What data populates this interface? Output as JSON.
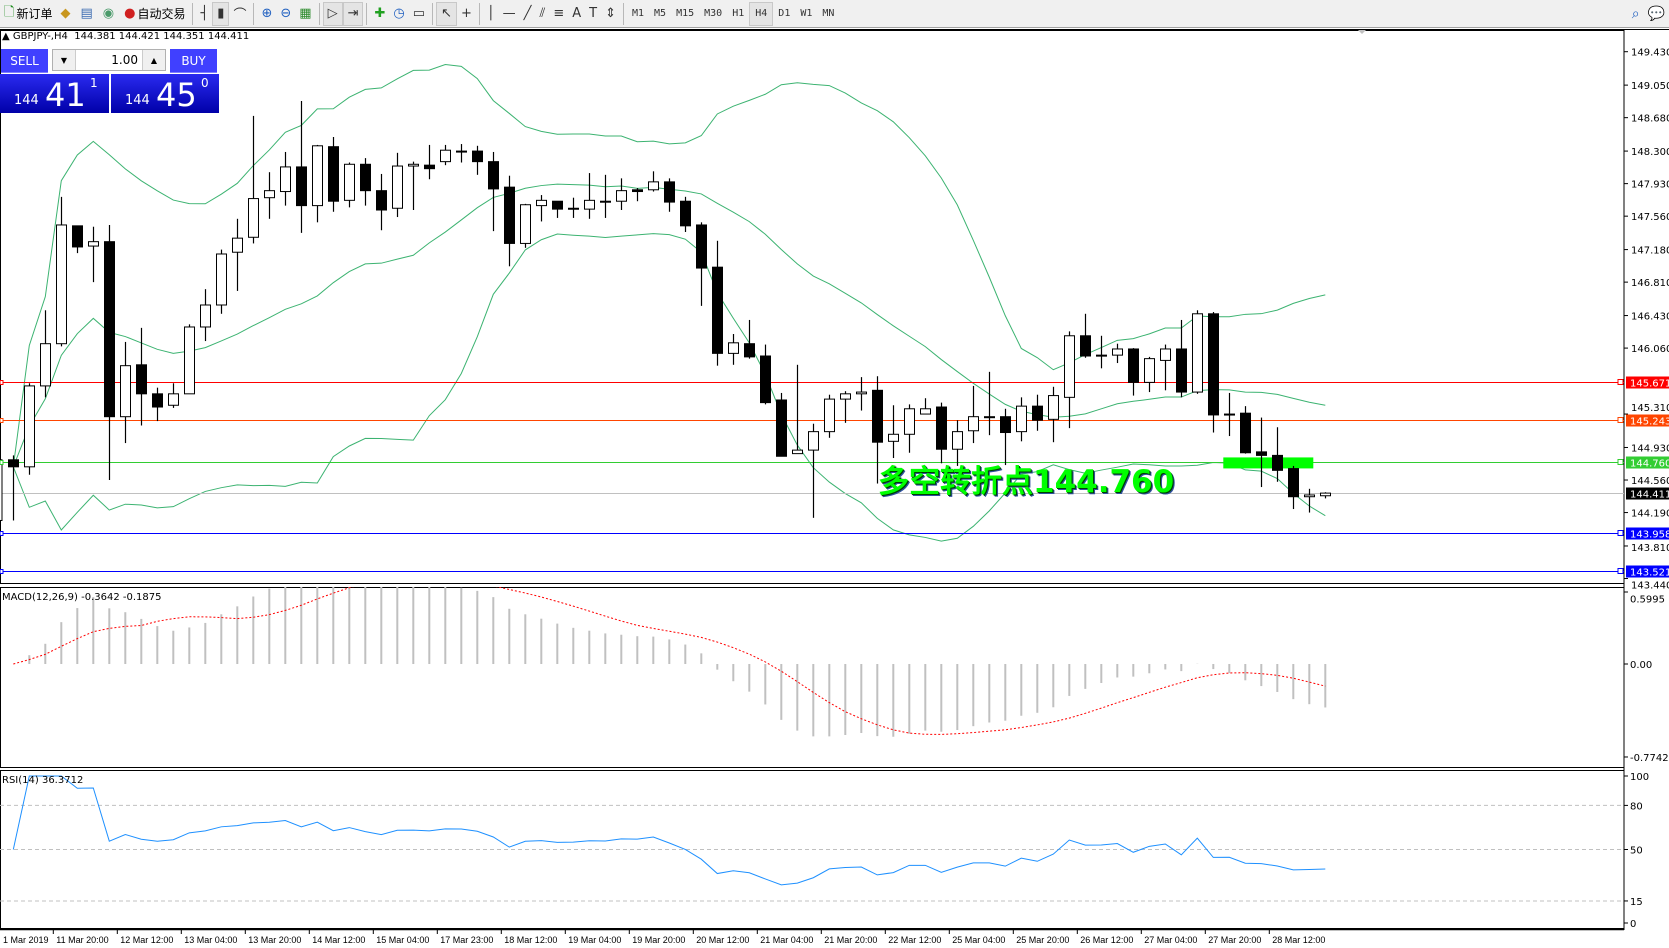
{
  "toolbar": {
    "items": [
      {
        "name": "new-order-button",
        "label": "新订单",
        "icon": "new-order-icon"
      },
      {
        "name": "market-watch-button",
        "label": "",
        "icon": "gold-bar-icon"
      },
      {
        "name": "navigator-button",
        "label": "",
        "icon": "navigator-icon"
      },
      {
        "name": "signals-button",
        "label": "",
        "icon": "signal-icon"
      },
      {
        "name": "auto-trading-button",
        "label": "自动交易",
        "icon": "auto-trading-icon"
      }
    ],
    "chart_tools": [
      "bar-chart-icon",
      "candlestick-icon",
      "line-chart-icon",
      "zoom-in-icon",
      "zoom-out-icon",
      "tile-windows-icon",
      "autoscroll-icon",
      "chart-shift-icon",
      "indicators-icon",
      "periods-icon",
      "templates-icon",
      "cursor-icon",
      "crosshair-icon",
      "vertical-line-icon",
      "horizontal-line-icon",
      "trendline-icon",
      "equidistant-channel-icon",
      "fibonacci-icon",
      "text-icon",
      "text-label-icon",
      "arrows-icon"
    ],
    "text_tool_label": "A",
    "timeframes": [
      "M1",
      "M5",
      "M15",
      "M30",
      "H1",
      "H4",
      "D1",
      "W1",
      "MN"
    ],
    "active_timeframe": "H4",
    "right_icons": [
      "search-icon",
      "chat-icon"
    ]
  },
  "header": {
    "symbol": "GBPJPY-,H4",
    "ohlc": "144.381 144.421 144.351 144.411"
  },
  "trade_panel": {
    "sell_label": "SELL",
    "buy_label": "BUY",
    "lot": "1.00",
    "sell_price": {
      "big_prefix": "144",
      "main": "41",
      "exp": "1"
    },
    "buy_price": {
      "big_prefix": "144",
      "main": "45",
      "exp": "0"
    }
  },
  "annotation": {
    "text": "多空转折点144.760",
    "color": "#00ff00"
  },
  "chart_data": {
    "type": "candlestick",
    "symbol": "GBPJPY-",
    "timeframe": "H4",
    "price_ticks": [
      "149.430",
      "149.050",
      "148.680",
      "148.300",
      "147.930",
      "147.560",
      "147.180",
      "146.810",
      "146.430",
      "146.060",
      "145.310",
      "144.930",
      "144.560",
      "144.190",
      "143.810",
      "143.440"
    ],
    "ylim": [
      143.44,
      149.5
    ],
    "time_labels": [
      {
        "label": "1 Mar 2019",
        "candle": -1
      },
      {
        "label": "11 Mar 20:00",
        "candle": 3
      },
      {
        "label": "12 Mar 12:00",
        "candle": 7
      },
      {
        "label": "13 Mar 04:00",
        "candle": 11
      },
      {
        "label": "13 Mar 20:00",
        "candle": 15
      },
      {
        "label": "14 Mar 12:00",
        "candle": 19
      },
      {
        "label": "15 Mar 04:00",
        "candle": 23
      },
      {
        "label": "17 Mar 23:00",
        "candle": 27
      },
      {
        "label": "18 Mar 12:00",
        "candle": 31
      },
      {
        "label": "19 Mar 04:00",
        "candle": 35
      },
      {
        "label": "19 Mar 20:00",
        "candle": 39
      },
      {
        "label": "20 Mar 12:00",
        "candle": 43
      },
      {
        "label": "21 Mar 04:00",
        "candle": 47
      },
      {
        "label": "21 Mar 20:00",
        "candle": 51
      },
      {
        "label": "22 Mar 12:00",
        "candle": 55
      },
      {
        "label": "25 Mar 04:00",
        "candle": 59
      },
      {
        "label": "25 Mar 20:00",
        "candle": 63
      },
      {
        "label": "26 Mar 12:00",
        "candle": 67
      },
      {
        "label": "27 Mar 04:00",
        "candle": 71
      },
      {
        "label": "27 Mar 20:00",
        "candle": 75
      },
      {
        "label": "28 Mar 12:00",
        "candle": 79
      }
    ],
    "ohlc": [
      [
        144.79,
        144.84,
        144.1,
        144.71
      ],
      [
        144.71,
        145.66,
        144.62,
        145.63
      ],
      [
        145.63,
        146.49,
        145.5,
        146.11
      ],
      [
        146.11,
        147.78,
        146.08,
        147.46
      ],
      [
        147.45,
        147.45,
        147.14,
        147.21
      ],
      [
        147.22,
        147.44,
        146.81,
        147.27
      ],
      [
        147.27,
        147.46,
        144.56,
        145.28
      ],
      [
        145.28,
        146.13,
        144.98,
        145.86
      ],
      [
        145.87,
        146.29,
        145.18,
        145.54
      ],
      [
        145.54,
        145.61,
        145.23,
        145.39
      ],
      [
        145.41,
        145.66,
        145.38,
        145.54
      ],
      [
        145.54,
        146.33,
        145.54,
        146.3
      ],
      [
        146.3,
        146.73,
        146.14,
        146.55
      ],
      [
        146.55,
        147.18,
        146.45,
        147.13
      ],
      [
        147.15,
        147.53,
        146.71,
        147.31
      ],
      [
        147.32,
        148.7,
        147.25,
        147.76
      ],
      [
        147.77,
        148.06,
        147.53,
        147.85
      ],
      [
        147.84,
        148.29,
        147.68,
        148.12
      ],
      [
        148.12,
        148.87,
        147.37,
        147.68
      ],
      [
        147.68,
        148.37,
        147.49,
        148.36
      ],
      [
        148.35,
        148.46,
        147.61,
        147.73
      ],
      [
        147.74,
        148.17,
        147.66,
        148.15
      ],
      [
        148.15,
        148.22,
        147.68,
        147.85
      ],
      [
        147.85,
        148.04,
        147.4,
        147.63
      ],
      [
        147.65,
        148.28,
        147.55,
        148.13
      ],
      [
        148.13,
        148.18,
        147.63,
        148.15
      ],
      [
        148.14,
        148.37,
        147.98,
        148.1
      ],
      [
        148.18,
        148.37,
        148.14,
        148.31
      ],
      [
        148.3,
        148.38,
        148.17,
        148.3
      ],
      [
        148.3,
        148.36,
        148.03,
        148.18
      ],
      [
        148.18,
        148.29,
        147.39,
        147.87
      ],
      [
        147.89,
        148.02,
        146.99,
        147.25
      ],
      [
        147.25,
        147.7,
        147.2,
        147.69
      ],
      [
        147.68,
        147.8,
        147.5,
        147.74
      ],
      [
        147.73,
        147.73,
        147.54,
        147.64
      ],
      [
        147.65,
        147.77,
        147.54,
        147.65
      ],
      [
        147.64,
        148.05,
        147.53,
        147.74
      ],
      [
        147.73,
        148.03,
        147.54,
        147.73
      ],
      [
        147.73,
        147.99,
        147.63,
        147.85
      ],
      [
        147.86,
        147.88,
        147.73,
        147.84
      ],
      [
        147.86,
        148.07,
        147.84,
        147.95
      ],
      [
        147.95,
        147.99,
        147.61,
        147.72
      ],
      [
        147.73,
        147.78,
        147.38,
        147.45
      ],
      [
        147.46,
        147.49,
        146.54,
        146.97
      ],
      [
        146.98,
        147.28,
        145.86,
        146.0
      ],
      [
        146.0,
        146.22,
        145.87,
        146.12
      ],
      [
        146.11,
        146.38,
        145.94,
        145.96
      ],
      [
        145.97,
        146.1,
        145.42,
        145.44
      ],
      [
        145.47,
        145.55,
        144.83,
        144.83
      ],
      [
        144.86,
        145.87,
        144.86,
        144.9
      ],
      [
        144.9,
        145.2,
        144.13,
        145.11
      ],
      [
        145.11,
        145.53,
        145.04,
        145.48
      ],
      [
        145.48,
        145.57,
        145.21,
        145.54
      ],
      [
        145.54,
        145.73,
        145.35,
        145.56
      ],
      [
        145.58,
        145.74,
        144.52,
        144.99
      ],
      [
        145.0,
        145.41,
        144.81,
        145.08
      ],
      [
        145.08,
        145.42,
        144.87,
        145.37
      ],
      [
        145.31,
        145.49,
        145.31,
        145.37
      ],
      [
        145.39,
        145.44,
        144.75,
        144.91
      ],
      [
        144.91,
        145.24,
        144.72,
        145.11
      ],
      [
        145.12,
        145.63,
        144.98,
        145.28
      ],
      [
        145.28,
        145.79,
        145.07,
        145.28
      ],
      [
        145.28,
        145.37,
        144.73,
        145.1
      ],
      [
        145.11,
        145.5,
        145.0,
        145.4
      ],
      [
        145.4,
        145.53,
        145.12,
        145.24
      ],
      [
        145.25,
        145.62,
        144.99,
        145.52
      ],
      [
        145.5,
        146.25,
        145.15,
        146.2
      ],
      [
        146.2,
        146.45,
        145.95,
        145.97
      ],
      [
        145.98,
        146.2,
        145.83,
        145.98
      ],
      [
        145.98,
        146.11,
        145.89,
        146.05
      ],
      [
        146.05,
        146.06,
        145.52,
        145.67
      ],
      [
        145.67,
        145.96,
        145.56,
        145.94
      ],
      [
        145.92,
        146.1,
        145.58,
        146.05
      ],
      [
        146.05,
        146.38,
        145.5,
        145.56
      ],
      [
        145.56,
        146.49,
        145.54,
        146.45
      ],
      [
        146.45,
        146.47,
        145.1,
        145.3
      ],
      [
        145.31,
        145.55,
        145.06,
        145.31
      ],
      [
        145.32,
        145.4,
        144.86,
        144.87
      ],
      [
        144.88,
        145.27,
        144.48,
        144.84
      ],
      [
        144.84,
        145.16,
        144.54,
        144.67
      ],
      [
        144.69,
        144.72,
        144.23,
        144.37
      ],
      [
        144.37,
        144.46,
        144.19,
        144.39
      ],
      [
        144.381,
        144.421,
        144.351,
        144.411
      ]
    ],
    "horizontal_lines": [
      {
        "price": "145.671",
        "color": "#ff0000"
      },
      {
        "price": "145.243",
        "color": "#ff4500"
      },
      {
        "price": "144.760",
        "color": "#32cd32"
      },
      {
        "price": "144.411",
        "color": "#c0c0c0",
        "label_bg": "#000000"
      },
      {
        "price": "143.958",
        "color": "#0000ff"
      },
      {
        "price": "143.521",
        "color": "#0000ff"
      }
    ],
    "pivot_zone": {
      "price": 144.76,
      "from_candle": 76,
      "to_candle": 82,
      "color": "#00ff00"
    },
    "bollinger": {
      "period": 20,
      "deviation": 2,
      "color": "#3cb371"
    },
    "macd": {
      "label": "MACD(12,26,9) -0.3642 -0.1875",
      "fast": 12,
      "slow": 26,
      "signal": 9,
      "ylim": [
        -0.7742,
        0.5995
      ],
      "ticks": [
        "0.5995",
        "0.00",
        "-0.7742"
      ],
      "hist_color": "#c0c0c0",
      "signal_color": "#ff0000"
    },
    "rsi": {
      "label": "RSI(14) 36.3712",
      "period": 14,
      "ticks": [
        "100",
        "80",
        "50",
        "15",
        "0"
      ],
      "levels": [
        80,
        50,
        15
      ],
      "color": "#1e90ff"
    }
  }
}
